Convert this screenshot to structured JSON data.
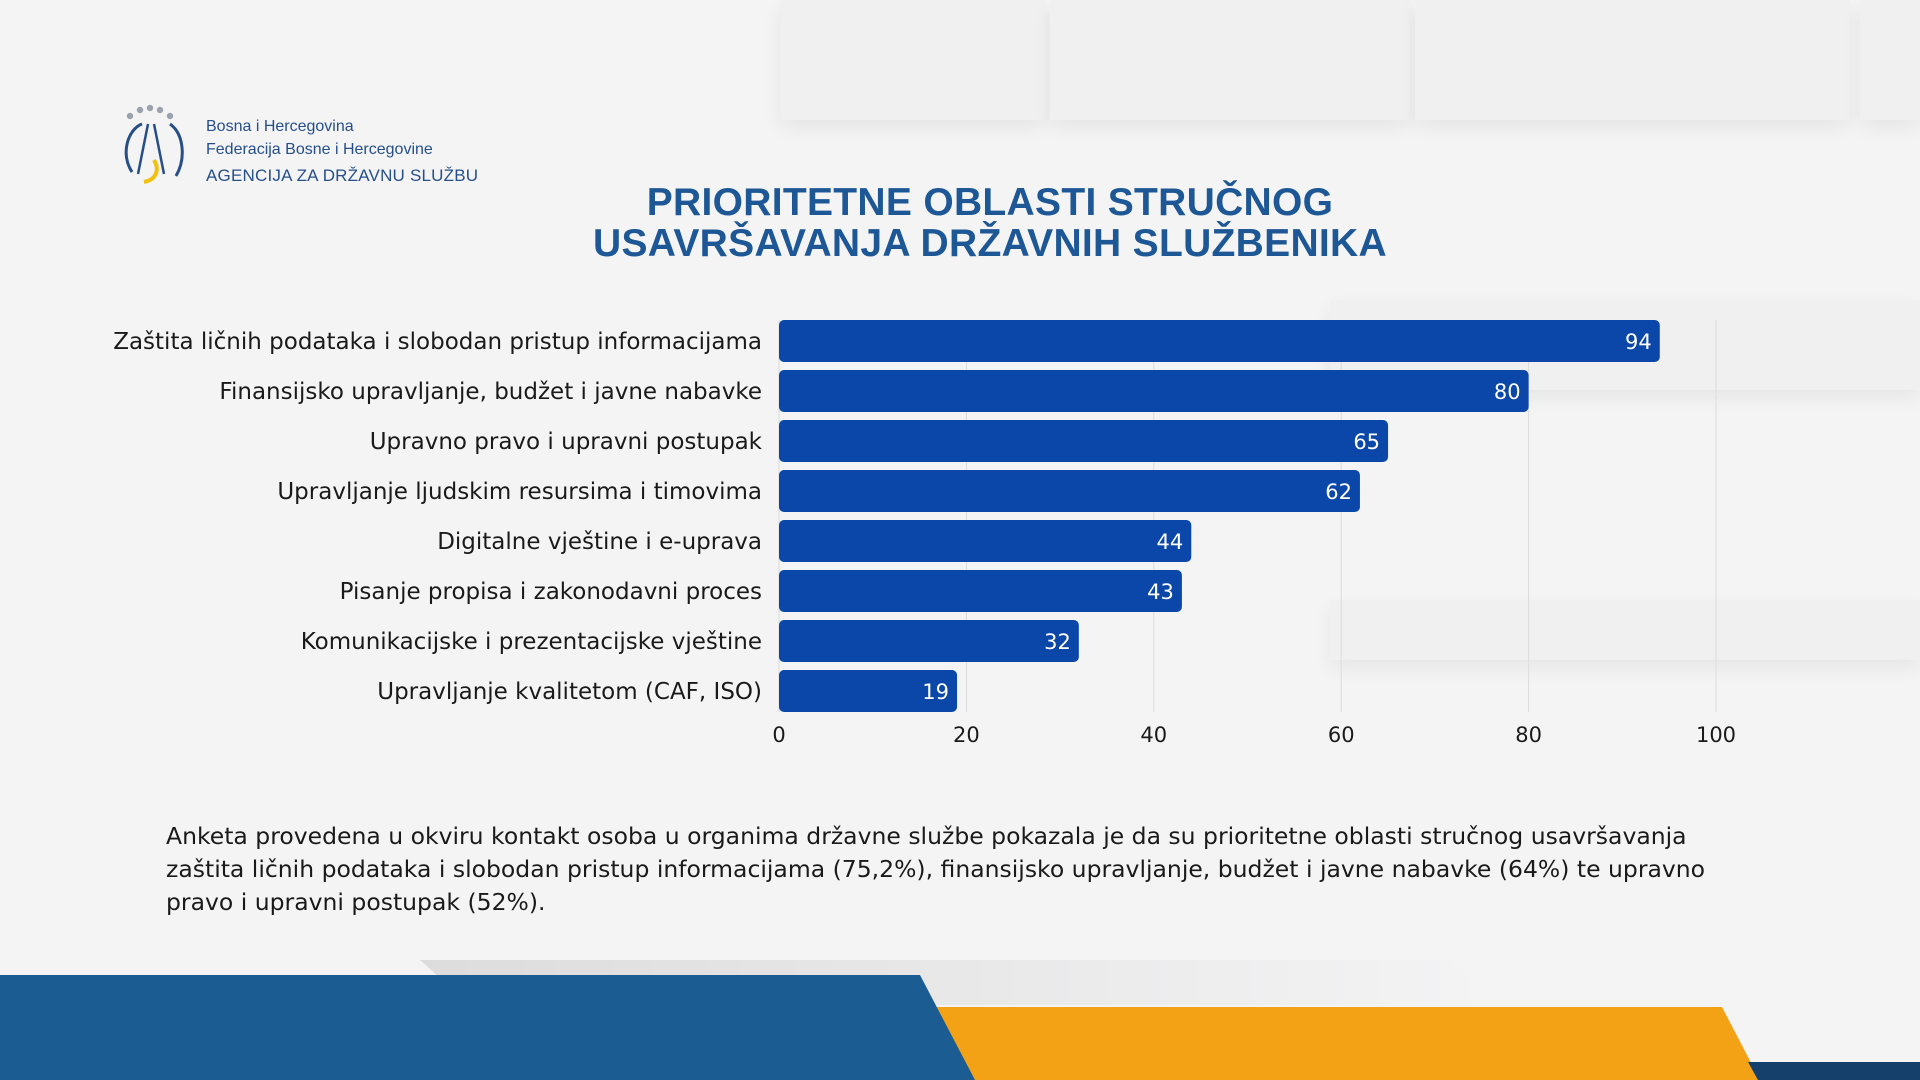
{
  "header": {
    "logo_lines": [
      "Bosna i Hercegovina",
      "Federacija Bosne i Hercegovine",
      "AGENCIJA ZA DRŽAVNU SLUŽBU"
    ]
  },
  "title_lines": [
    "PRIORITETNE OBLASTI STRUČNOG",
    "USAVRŠAVANJA DRŽAVNIH SLUŽBENIKA"
  ],
  "chart_data": {
    "type": "bar",
    "orientation": "horizontal",
    "title": "PRIORITETNE OBLASTI STRUČNOG USAVRŠAVANJA DRŽAVNIH SLUŽBENIKA",
    "categories": [
      "Zaštita ličnih podataka i slobodan pristup informacijama",
      "Finansijsko upravljanje, budžet i javne nabavke",
      "Upravno pravo i upravni postupak",
      "Upravljanje ljudskim resursima i timovima",
      "Digitalne vještine i e-uprava",
      "Pisanje propisa i zakonodavni proces",
      "Komunikacijske i prezentacijske vještine",
      "Upravljanje kvalitetom (CAF, ISO)"
    ],
    "values": [
      94,
      80,
      65,
      62,
      44,
      43,
      32,
      19
    ],
    "xticks": [
      0,
      20,
      40,
      60,
      80,
      100
    ],
    "xlim": [
      0,
      100
    ],
    "xlabel": "",
    "ylabel": "",
    "grid": true,
    "legend": "none",
    "bar_color": "#0a47a9"
  },
  "summary": "Anketa provedena u okviru kontakt osoba u organima državne službe pokazala je da su prioritetne oblasti stručnog usavršavanja zaštita ličnih podataka i slobodan pristup informacijama (75,2%), finansijsko upravljanje, budžet i javne nabavke (64%) te upravno pravo i upravni postupak (52%).",
  "colors": {
    "title": "#1e5795",
    "bar": "#0a47a9",
    "footer_blue": "#1b5c93",
    "footer_orange": "#f4a215",
    "footer_dark": "#15406c"
  }
}
